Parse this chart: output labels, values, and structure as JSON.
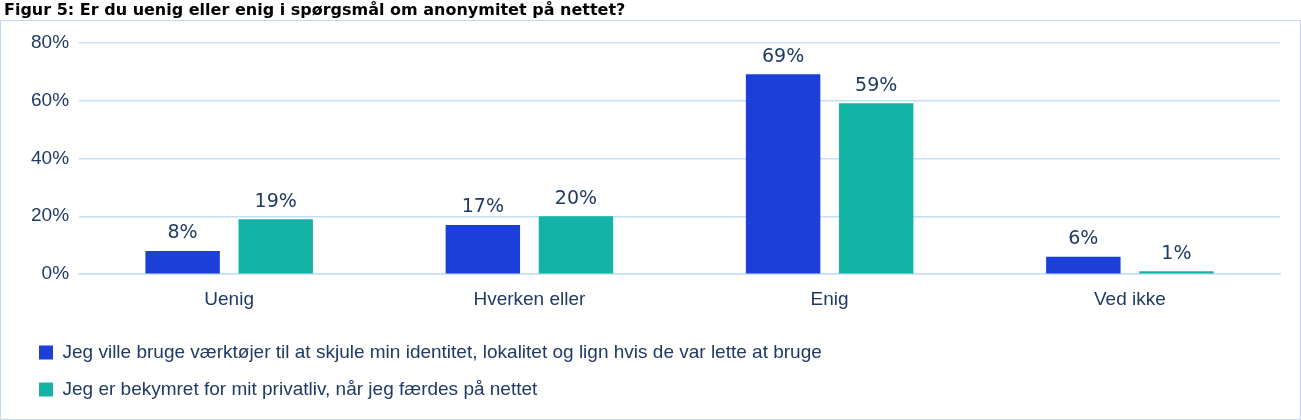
{
  "chart_data": {
    "type": "bar",
    "title": "Figur 5: Er du uenig eller enig i spørgsmål om anonymitet på nettet?",
    "categories": [
      "Uenig",
      "Hverken eller",
      "Enig",
      "Ved ikke"
    ],
    "series": [
      {
        "name": "Jeg ville bruge værktøjer til at skjule min identitet, lokalitet og lign hvis de var lette at bruge",
        "color": "#1b3fd8",
        "values": [
          8,
          17,
          69,
          6
        ],
        "value_labels": [
          "8%",
          "17%",
          "69%",
          "6%"
        ]
      },
      {
        "name": "Jeg er bekymret for mit privatliv, når jeg færdes på nettet",
        "color": "#14b3a6",
        "values": [
          19,
          20,
          59,
          1
        ],
        "value_labels": [
          "19%",
          "20%",
          "59%",
          "1%"
        ]
      }
    ],
    "ylim": [
      0,
      80
    ],
    "yticks": [
      {
        "value": 0,
        "label": "0%"
      },
      {
        "value": 20,
        "label": "20%"
      },
      {
        "value": 40,
        "label": "40%"
      },
      {
        "value": 60,
        "label": "60%"
      },
      {
        "value": 80,
        "label": "80%"
      }
    ],
    "grid": "y",
    "legend": "bottom"
  }
}
